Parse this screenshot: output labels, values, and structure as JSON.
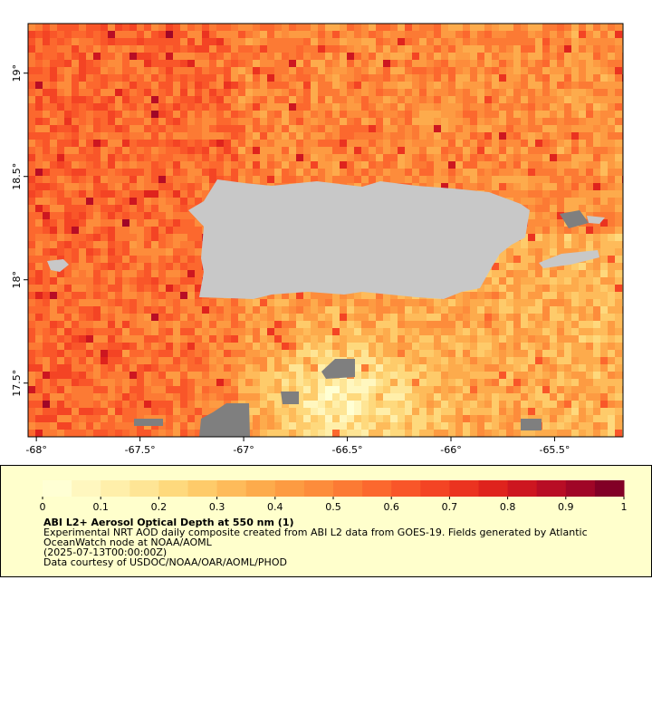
{
  "map": {
    "xlim": [
      -68.04,
      -65.17
    ],
    "ylim": [
      17.24,
      19.24
    ],
    "xticks": [
      {
        "value": -68,
        "label": "-68°"
      },
      {
        "value": -67.5,
        "label": "-67.5°"
      },
      {
        "value": -67,
        "label": "-67°"
      },
      {
        "value": -66.5,
        "label": "-66.5°"
      },
      {
        "value": -66,
        "label": "-66°"
      },
      {
        "value": -65.5,
        "label": "-65.5°"
      }
    ],
    "yticks": [
      {
        "value": 17.5,
        "label": "17.5°"
      },
      {
        "value": 18,
        "label": "18°"
      },
      {
        "value": 18.5,
        "label": "18.5°"
      },
      {
        "value": 19,
        "label": "19°"
      }
    ]
  },
  "colorbar": {
    "lim": [
      0,
      1
    ],
    "ticks": [
      0,
      0.1,
      0.2,
      0.3,
      0.4,
      0.5,
      0.6,
      0.7,
      0.8,
      0.9,
      1
    ],
    "colors": [
      "#ffffd4",
      "#fff7bf",
      "#ffefaa",
      "#fee595",
      "#fed97d",
      "#fecb6a",
      "#febb5a",
      "#fdab4c",
      "#fd9b42",
      "#fd8c3b",
      "#fc7a34",
      "#fc682e",
      "#f95629",
      "#f44424",
      "#eb3320",
      "#df231d",
      "#cd1620",
      "#b80d25",
      "#a00627",
      "#820026"
    ]
  },
  "legend": {
    "title": "ABI L2+ Aerosol Optical Depth at 550 nm (1)",
    "lines": [
      "Experimental NRT AOD daily composite created from ABI L2 data from GOES-19. Fields generated by Atlantic",
      "OceanWatch node at NOAA/AOML",
      "(2025-07-13T00:00:00Z)",
      "Data courtesy of USDOC/NOAA/OAR/AOML/PHOD"
    ]
  }
}
